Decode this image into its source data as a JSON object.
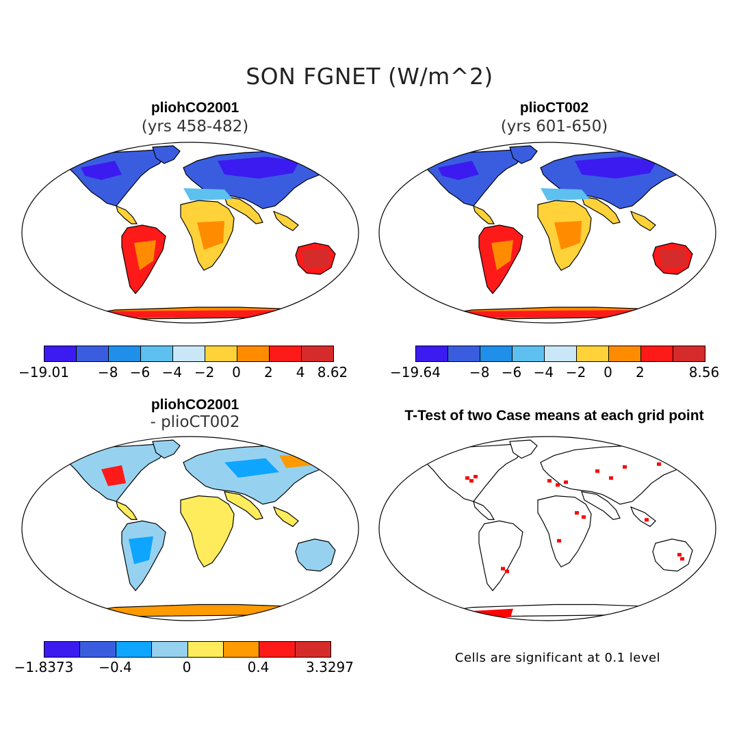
{
  "title": "SON FGNET (W/m^2)",
  "panels": [
    {
      "title": "pliohCO2001",
      "subtitle": "(yrs 458-482)",
      "colorbar": {
        "colors": [
          "#3b1bf0",
          "#3a5de0",
          "#1f8fea",
          "#5ec0ef",
          "#c9e7f7",
          "#ffd23a",
          "#ff8c00",
          "#ff1a1a",
          "#d52b2b"
        ],
        "tick_labels": [
          "-19.01",
          "-8",
          "-6",
          "-4",
          "-2",
          "0",
          "2",
          "4",
          "8.62"
        ]
      }
    },
    {
      "title": "plioCT002",
      "subtitle": "(yrs 601-650)",
      "colorbar": {
        "colors": [
          "#3b1bf0",
          "#3a5de0",
          "#1f8fea",
          "#5ec0ef",
          "#c9e7f7",
          "#ffd23a",
          "#ff8c00",
          "#ff1a1a",
          "#d52b2b"
        ],
        "tick_labels": [
          "-19.64",
          "-8",
          "-6",
          "-4",
          "-2",
          "0",
          "2",
          "8.56"
        ]
      }
    },
    {
      "title": "pliohCO2001",
      "subtitle": "- plioCT002",
      "colorbar": {
        "colors": [
          "#3b1bf0",
          "#3a5de0",
          "#0ea5ff",
          "#96d2f0",
          "#ffec5c",
          "#ff9a00",
          "#ff1a1a",
          "#d52b2b"
        ],
        "tick_labels": [
          "-1.8373",
          "-0.4",
          "0",
          "0.4",
          "3.3297"
        ]
      }
    },
    {
      "title": "T-Test of two Case means at each grid point",
      "note": "Cells are significant at 0.1 level",
      "significance_color": "#ff0000"
    }
  ]
}
